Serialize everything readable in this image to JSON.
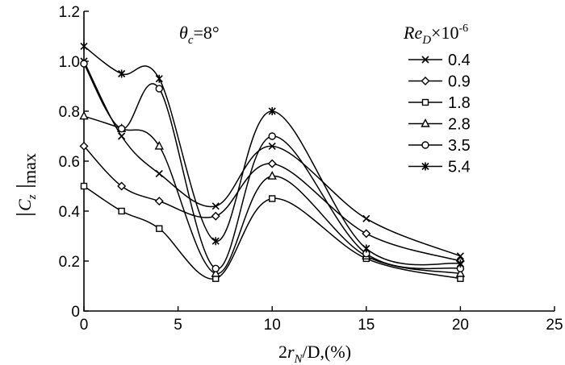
{
  "chart_data": {
    "type": "line",
    "annotation": {
      "symbol": "θ",
      "sub": "c",
      "value": "=8°"
    },
    "xlabel": {
      "pre": "2",
      "var": "r",
      "sub": "N",
      "post": "/D,(%)"
    },
    "ylabel": {
      "var": "C",
      "sub": "z",
      "post": "max"
    },
    "xlim": [
      0,
      25
    ],
    "ylim": [
      0,
      1.2
    ],
    "x_ticks": [
      0,
      5,
      10,
      15,
      20,
      25
    ],
    "x_tick_labels": [
      "0",
      "5",
      "10",
      "15",
      "20",
      "25"
    ],
    "y_ticks": [
      0,
      0.2,
      0.4,
      0.6,
      0.8,
      1.0,
      1.2
    ],
    "y_tick_labels": [
      "0",
      "0.2",
      "0.4",
      "0.6",
      "0.8",
      "1.0",
      "1.2"
    ],
    "legend": {
      "title_var": "Re",
      "title_sub": "D",
      "title_post": "×10",
      "title_sup": "-6",
      "placement": "right"
    },
    "grid": false,
    "x": [
      0,
      2,
      4,
      7,
      10,
      15,
      20
    ],
    "series": [
      {
        "name": "0.4",
        "marker": "x",
        "values": [
          1.0,
          0.7,
          0.55,
          0.42,
          0.66,
          0.37,
          0.22
        ]
      },
      {
        "name": "0.9",
        "marker": "diamond",
        "values": [
          0.66,
          0.5,
          0.44,
          0.38,
          0.59,
          0.31,
          0.2
        ]
      },
      {
        "name": "1.8",
        "marker": "square",
        "values": [
          0.5,
          0.4,
          0.33,
          0.13,
          0.45,
          0.21,
          0.13
        ]
      },
      {
        "name": "2.8",
        "marker": "triangle",
        "values": [
          0.78,
          0.73,
          0.66,
          0.15,
          0.54,
          0.22,
          0.15
        ]
      },
      {
        "name": "3.5",
        "marker": "circle",
        "values": [
          0.99,
          0.73,
          0.89,
          0.17,
          0.7,
          0.23,
          0.17
        ]
      },
      {
        "name": "5.4",
        "marker": "asterisk",
        "values": [
          1.06,
          0.95,
          0.93,
          0.28,
          0.8,
          0.25,
          0.19
        ]
      }
    ]
  }
}
